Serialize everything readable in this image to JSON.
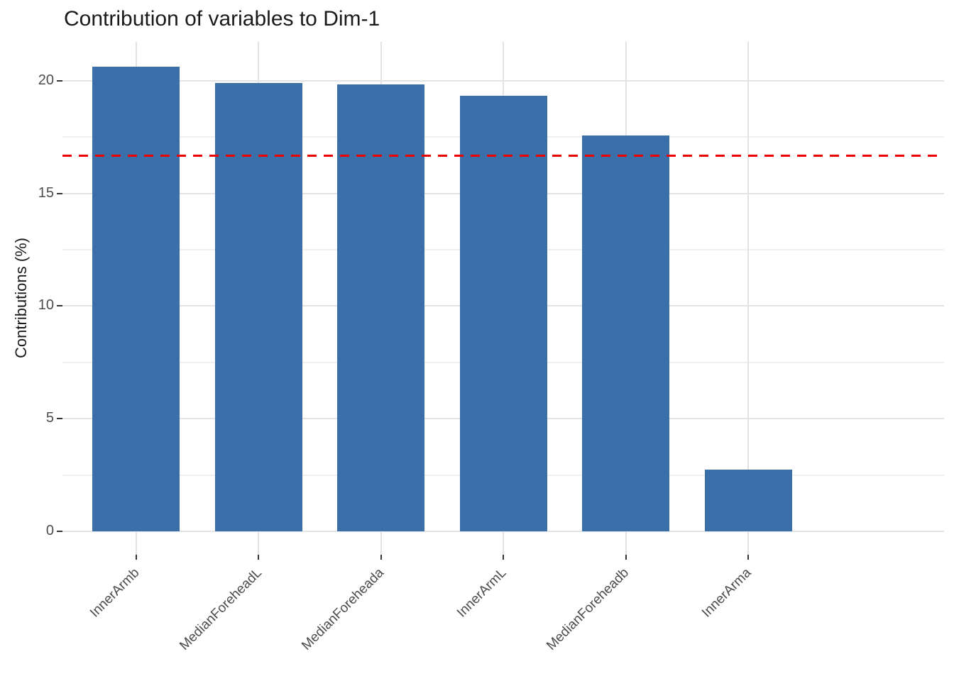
{
  "title": "Contribution of variables to Dim-1",
  "y_axis": {
    "label": "Contributions (%)",
    "tick_labels": [
      "0",
      "5",
      "10",
      "15",
      "20"
    ]
  },
  "x_axis": {
    "tick_labels": [
      "InnerArmb",
      "MedianForeheadL",
      "MedianForeheada",
      "InnerArmL",
      "MedianForeheadb",
      "InnerArma"
    ]
  },
  "chart_data": {
    "type": "bar",
    "title": "Contribution of variables to Dim-1",
    "xlabel": "",
    "ylabel": "Contributions (%)",
    "categories": [
      "InnerArmb",
      "MedianForeheadL",
      "MedianForeheada",
      "InnerArmL",
      "MedianForeheadb",
      "InnerArma"
    ],
    "values": [
      20.63,
      19.89,
      19.84,
      19.34,
      17.58,
      2.73
    ],
    "ylim": [
      0,
      21.7
    ],
    "y_major_ticks": [
      0,
      5,
      10,
      15,
      20
    ],
    "y_minor_gridlines": [
      2.5,
      7.5,
      12.5,
      17.5
    ],
    "x_label_angle_deg": 45,
    "grid": true,
    "legend": "none",
    "reference_line": {
      "value": 16.67,
      "style": "dashed",
      "color": "#ee0000",
      "meaning": "expected average contribution (100/6)"
    },
    "bar_color": "#3a6fa9",
    "gridline_major_color": "#e3e3e3",
    "gridline_minor_color": "#f0f0f0",
    "tick_label_color": "#4d4d4d",
    "background_color": "#ffffff"
  }
}
